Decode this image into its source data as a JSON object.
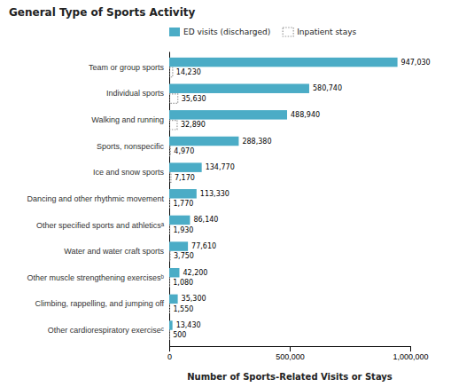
{
  "chart_data": {
    "type": "bar",
    "orientation": "horizontal",
    "title": "General Type of Sports Activity",
    "xlabel": "Number of Sports-Related Visits or Stays",
    "categories": [
      "Other cardiorespiratory exerciseᶜ",
      "Climbing, rappelling, and jumping off",
      "Other muscle strengthening exercisesᵇ",
      "Water and water craft sports",
      "Other specified sports and athleticsᵃ",
      "Dancing and other rhythmic movement",
      "Ice and snow sports",
      "Sports, nonspecific",
      "Walking and running",
      "Individual sports",
      "Team or group sports"
    ],
    "series": [
      {
        "name": "ED visits (discharged)",
        "color": "#4BACC6",
        "values": [
          13430,
          35300,
          42200,
          77610,
          86140,
          113330,
          134770,
          288380,
          488940,
          580740,
          947030
        ],
        "value_labels": [
          "13,430",
          "35,300",
          "42,200",
          "77,610",
          "86,140",
          "113,330",
          "134,770",
          "288,380",
          "488,940",
          "580,740",
          "947,030"
        ]
      },
      {
        "name": "Inpatient stays",
        "color": "#999999",
        "line_style": "dotted",
        "values": [
          500,
          1550,
          1080,
          3750,
          1930,
          1770,
          7170,
          4970,
          32890,
          35630,
          14230
        ],
        "value_labels": [
          "500",
          "1,550",
          "1,080",
          "3,750",
          "1,930",
          "1,770",
          "7,170",
          "4,970",
          "32,890",
          "35,630",
          "14,230"
        ]
      }
    ],
    "xlim": [
      0,
      1000000
    ],
    "xticks": [
      0,
      {
        "value": 500000,
        "label": "500,000"
      },
      {
        "value": 1000000,
        "label": "1,000,000"
      }
    ],
    "data_labels": true,
    "legend": "top",
    "grid": false
  }
}
